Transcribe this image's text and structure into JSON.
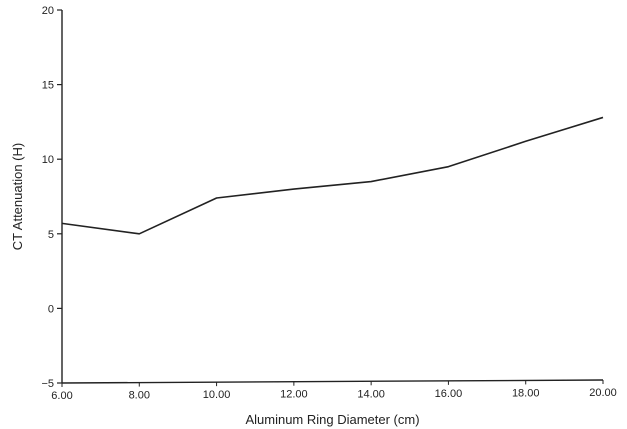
{
  "chart_data": {
    "type": "line",
    "title": "",
    "xlabel": "Aluminum Ring Diameter (cm)",
    "ylabel": "CT Attenuation (H)",
    "xlim": [
      6,
      20
    ],
    "ylim": [
      -5,
      20
    ],
    "x_ticks": [
      6,
      8,
      10,
      12,
      14,
      16,
      18,
      20
    ],
    "x_tick_labels": [
      "6.00",
      "8.00",
      "10.00",
      "12.00",
      "14.00",
      "16.00",
      "18.00",
      "20.00"
    ],
    "y_ticks": [
      -5,
      0,
      5,
      10,
      15,
      20
    ],
    "y_tick_labels": [
      "−5",
      "0",
      "5",
      "10",
      "15",
      "20"
    ],
    "grid": false,
    "legend": "none",
    "line_color": "#222222",
    "series": [
      {
        "x": [
          6,
          8,
          10,
          12,
          14,
          16,
          18,
          20
        ],
        "values": [
          5.7,
          5.0,
          7.4,
          8.0,
          8.5,
          9.5,
          11.2,
          12.8
        ]
      }
    ]
  }
}
